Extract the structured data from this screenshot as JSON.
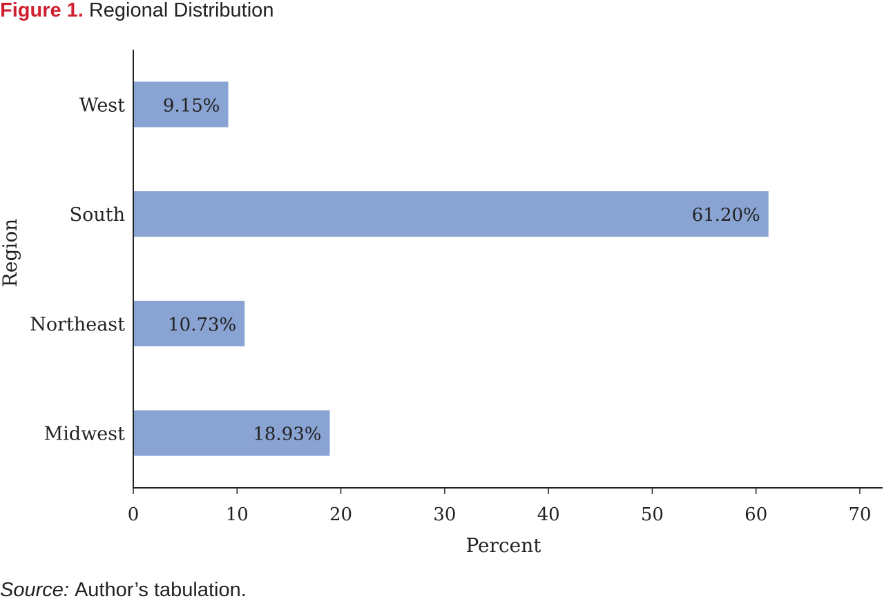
{
  "figure": {
    "label": "Figure 1.",
    "title": "Regional Distribution",
    "label_color": "#d0202f"
  },
  "source": {
    "label": "Source:",
    "text": "Author’s tabulation."
  },
  "chart_data": {
    "type": "bar",
    "orientation": "horizontal",
    "categories": [
      "West",
      "South",
      "Northeast",
      "Midwest"
    ],
    "values": [
      9.15,
      61.2,
      10.73,
      18.93
    ],
    "value_labels": [
      "9.15%",
      "61.20%",
      "10.73%",
      "18.93%"
    ],
    "xlabel": "Percent",
    "ylabel": "Region",
    "xlim": [
      0,
      70
    ],
    "xticks": [
      0,
      10,
      20,
      30,
      40,
      50,
      60,
      70
    ],
    "xtick_labels": [
      "0",
      "10",
      "20",
      "30",
      "40",
      "50",
      "60",
      "70"
    ],
    "grid": false,
    "bar_color": "#89a3d3",
    "axis_color": "#222222",
    "text_color": "#222222"
  }
}
